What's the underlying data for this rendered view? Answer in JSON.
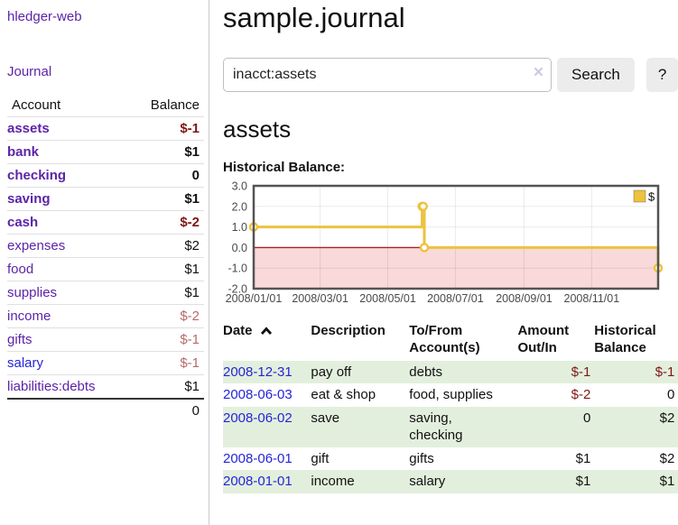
{
  "colors": {
    "purple": "#5c24a8",
    "blue": "#2525d8",
    "neg_strong": "#7f1616",
    "neg_soft": "#b86a6a",
    "row_green": "#e3efdd"
  },
  "sidebar": {
    "app_title": "hledger-web",
    "nav": {
      "journal": "Journal"
    },
    "accounts_table": {
      "headers": {
        "account": "Account",
        "balance": "Balance"
      },
      "rows": [
        {
          "name": "assets",
          "balance": "$-1"
        },
        {
          "name": "bank",
          "balance": "$1"
        },
        {
          "name": "checking",
          "balance": "0"
        },
        {
          "name": "saving",
          "balance": "$1"
        },
        {
          "name": "cash",
          "balance": "$-2"
        },
        {
          "name": "expenses",
          "balance": "$2"
        },
        {
          "name": "food",
          "balance": "$1"
        },
        {
          "name": "supplies",
          "balance": "$1"
        },
        {
          "name": "income",
          "balance": "$-2"
        },
        {
          "name": "gifts",
          "balance": "$-1"
        },
        {
          "name": "salary",
          "balance": "$-1"
        },
        {
          "name": "liabilities:debts",
          "balance": "$1"
        }
      ],
      "total": "0"
    }
  },
  "header": {
    "title": "sample.journal"
  },
  "search": {
    "value": "inacct:assets",
    "clear_glyph": "×",
    "button_label": "Search",
    "help_label": "?"
  },
  "account_page": {
    "heading": "assets",
    "chart_label": "Historical Balance:"
  },
  "chart_data": {
    "type": "line",
    "style": "step",
    "title": "Historical Balance",
    "legend_position": "top-right",
    "grid": true,
    "negative_region_shaded": true,
    "xlim": [
      "2008-01-01",
      "2008-12-31"
    ],
    "ylim": [
      -2,
      3
    ],
    "x_ticks": [
      "2008/01/01",
      "2008/03/01",
      "2008/05/01",
      "2008/07/01",
      "2008/09/01",
      "2008/11/01"
    ],
    "y_ticks": [
      "3.0",
      "2.0",
      "1.0",
      "0.0",
      "-1.0",
      "-2.0"
    ],
    "series": [
      {
        "name": "$",
        "points": [
          [
            "2008-01-01",
            1
          ],
          [
            "2008-06-01",
            2
          ],
          [
            "2008-06-02",
            2
          ],
          [
            "2008-06-03",
            0
          ],
          [
            "2008-12-31",
            -1
          ]
        ]
      }
    ],
    "colors": {
      "line": "#edc240",
      "marker_fill": "#ffffff",
      "negative_region": "#f9d9d9",
      "zero_line": "#aa2222",
      "border": "#545454",
      "grid_line": "rgba(0,0,0,0.08)",
      "tick_text": "#4a4a4a"
    }
  },
  "register": {
    "headers": {
      "date": "Date",
      "description": "Description",
      "accounts": "To/From\nAccount(s)",
      "amount": "Amount\nOut/In",
      "balance": "Historical\nBalance"
    },
    "rows": [
      {
        "date": "2008-12-31",
        "description": "pay off",
        "accounts": "debts",
        "amount": "$-1",
        "balance": "$-1"
      },
      {
        "date": "2008-06-03",
        "description": "eat & shop",
        "accounts": "food, supplies",
        "amount": "$-2",
        "balance": "0"
      },
      {
        "date": "2008-06-02",
        "description": "save",
        "accounts": "saving,\nchecking",
        "amount": "0",
        "balance": "$2"
      },
      {
        "date": "2008-06-01",
        "description": "gift",
        "accounts": "gifts",
        "amount": "$1",
        "balance": "$2"
      },
      {
        "date": "2008-01-01",
        "description": "income",
        "accounts": "salary",
        "amount": "$1",
        "balance": "$1"
      }
    ]
  }
}
